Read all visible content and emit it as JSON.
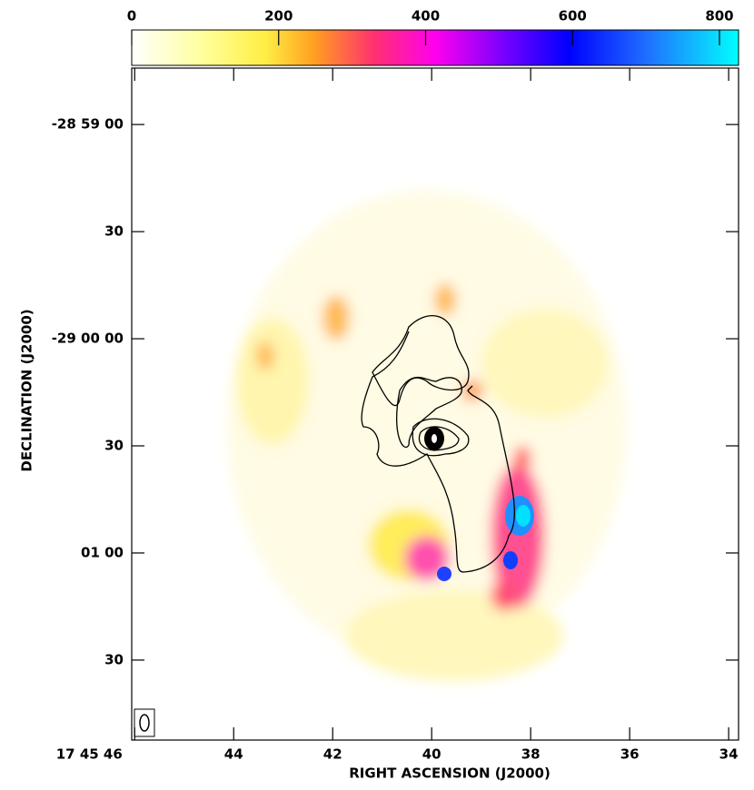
{
  "chart_data": {
    "type": "image",
    "xlabel": "RIGHT ASCENSION (J2000)",
    "ylabel": "DECLINATION (J2000)",
    "xlim": [
      46.06,
      33.8
    ],
    "xticks": [
      {
        "value": 46,
        "label": "17 45 46"
      },
      44,
      42,
      40,
      38,
      36,
      34
    ],
    "ylim": [
      -15.8,
      172.4
    ],
    "yticks": [
      {
        "value": 0,
        "label": "-28 59 00"
      },
      {
        "value": 30,
        "label": "30"
      },
      {
        "value": 60,
        "label": "-29 00 00"
      },
      {
        "value": 90,
        "label": "30"
      },
      {
        "value": 120,
        "label": "01 00"
      },
      {
        "value": 150,
        "label": "30"
      }
    ],
    "colorbar": {
      "lim": [
        0,
        826
      ],
      "ticks": [
        0,
        200,
        400,
        600,
        800
      ]
    }
  }
}
